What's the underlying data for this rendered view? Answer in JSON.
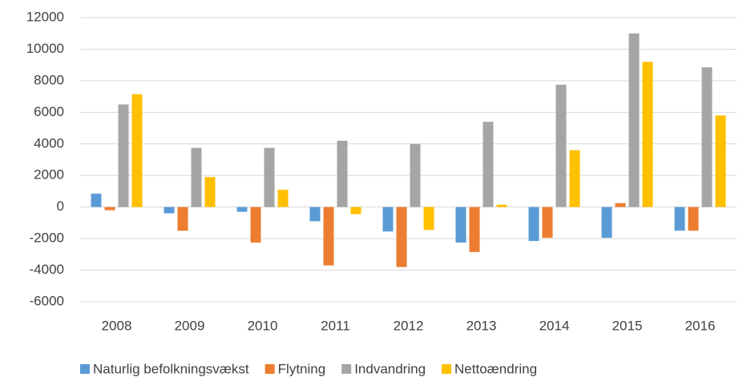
{
  "chart_data": {
    "type": "bar",
    "categories": [
      "2008",
      "2009",
      "2010",
      "2011",
      "2012",
      "2013",
      "2014",
      "2015",
      "2016"
    ],
    "series": [
      {
        "name": "Naturlig befolkningsvækst",
        "color": "#5b9bd5",
        "values": [
          850,
          -400,
          -300,
          -900,
          -1550,
          -2250,
          -2150,
          -1950,
          -1500
        ]
      },
      {
        "name": "Flytning",
        "color": "#ed7d31",
        "values": [
          -200,
          -1500,
          -2250,
          -3700,
          -3800,
          -2850,
          -1950,
          250,
          -1500
        ]
      },
      {
        "name": "Indvandring",
        "color": "#a5a5a5",
        "values": [
          6500,
          3750,
          3750,
          4200,
          4000,
          5400,
          7750,
          11000,
          8850
        ]
      },
      {
        "name": "Nettoændring",
        "color": "#ffc000",
        "values": [
          7150,
          1900,
          1100,
          -450,
          -1450,
          150,
          3600,
          9200,
          5800
        ]
      }
    ],
    "ylim": [
      -6000,
      12000
    ],
    "yticks": [
      -6000,
      -4000,
      -2000,
      0,
      2000,
      4000,
      6000,
      8000,
      10000,
      12000
    ],
    "grid": true,
    "legend": "bottom"
  }
}
